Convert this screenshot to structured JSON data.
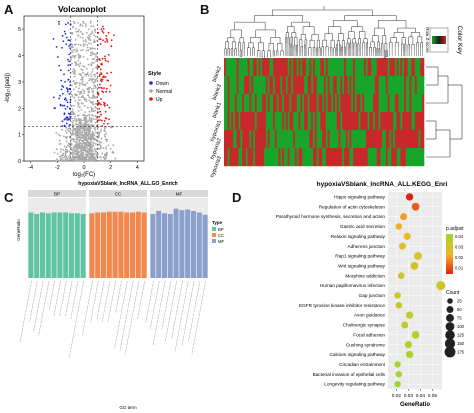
{
  "panel_letters": {
    "a": "A",
    "b": "B",
    "c": "C",
    "d": "D"
  },
  "colors": {
    "down": "#1f2fd6",
    "normal": "#a8a8a8",
    "up": "#e01919",
    "heat_red": "#c9282a",
    "heat_green": "#17a52a",
    "heat_dark": "#1a1a1a",
    "bp": "#5fc4a2",
    "cc": "#f5874d",
    "mf": "#8aa0cc",
    "dot_high": "#e4210f",
    "dot_low": "#9fd632"
  },
  "volcano": {
    "title": "Volcanoplot",
    "xlabel": "log₂(FC)",
    "ylabel": "-log₁₀(padj)",
    "legend_title": "Style",
    "legend_items": [
      "Down",
      "Normal",
      "Up"
    ],
    "xticks": [
      "-4",
      "-2",
      "0",
      "2",
      "4"
    ],
    "yticks": [
      "0",
      "1",
      "2",
      "3",
      "4",
      "5"
    ]
  },
  "heatmap": {
    "colorkey_title": "Color Key",
    "colorkey_sub": "Row Z-score",
    "colorkey_ticks": [
      "-2",
      "0",
      "2"
    ],
    "row_labels": [
      "blank2",
      "blank3",
      "blank1",
      "hypoxia1",
      "hypoxia2",
      "hypoxia3"
    ]
  },
  "go": {
    "title": "hypoxiaVSblank_lncRNA_ALL.GO_Enrich",
    "strip_labels": [
      "BP",
      "CC",
      "MF"
    ],
    "ylabel": "GeneRatio",
    "xlabel": "GO term",
    "legend_title": "Type",
    "legend_items": [
      "BP",
      "CC",
      "MF"
    ]
  },
  "kegg": {
    "title": "hypoxiaVSblank_lncRNA_ALL.KEGG_Enri",
    "xlabel": "GeneRatio",
    "xticks": [
      "0.02",
      "0.03",
      "0.04",
      "0.05"
    ],
    "padj_title": "p.adjust",
    "padj_ticks": [
      "0.04",
      "0.03",
      "0.02",
      "0.01"
    ],
    "count_title": "Count",
    "count_ticks": [
      "25",
      "50",
      "75",
      "100",
      "125",
      "150",
      "175"
    ]
  },
  "chart_data": [
    {
      "type": "scatter",
      "title": "Volcanoplot",
      "xlabel": "log₂(FC)",
      "ylabel": "-log₁₀(padj)",
      "xlim": [
        -4.5,
        4.5
      ],
      "ylim": [
        0,
        5.5
      ],
      "series": [
        {
          "name": "Down"
        },
        {
          "name": "Normal"
        },
        {
          "name": "Up"
        }
      ],
      "thresholds": {
        "log2fc": [
          -1,
          1
        ],
        "neg_log10_padj": 1.3
      }
    },
    {
      "type": "heatmap",
      "rows": [
        "blank2",
        "blank3",
        "blank1",
        "hypoxia1",
        "hypoxia2",
        "hypoxia3"
      ],
      "colorkey_range": [
        -2,
        2
      ]
    },
    {
      "type": "bar",
      "title": "hypoxiaVSblank_lncRNA_ALL.GO_Enrich",
      "ylabel": "GeneRatio",
      "xlabel": "GO term",
      "ylim": [
        0,
        1.05
      ],
      "groups": [
        {
          "name": "BP",
          "values": [
            0.86,
            0.84,
            0.86,
            0.85,
            0.86,
            0.86,
            0.86,
            0.85,
            0.85,
            0.84
          ]
        },
        {
          "name": "CC",
          "values": [
            0.85,
            0.86,
            0.86,
            0.87,
            0.87,
            0.87,
            0.86,
            0.86,
            0.87,
            0.86
          ]
        },
        {
          "name": "MF",
          "values": [
            0.84,
            0.88,
            0.85,
            0.84,
            0.91,
            0.89,
            0.9,
            0.88,
            0.86,
            0.83
          ]
        }
      ]
    },
    {
      "type": "scatter",
      "title": "hypoxiaVSblank_lncRNA_ALL.KEGG_Enri",
      "xlabel": "GeneRatio",
      "xlim": [
        0.013,
        0.058
      ],
      "categories": [
        "Hippo signaling pathway",
        "Regulation of actin cytoskeleton",
        "Parathyroid hormone synthesis, secretion and action",
        "Gastric acid secretion",
        "Relaxin signaling pathway",
        "Adherens junction",
        "Rap1 signaling pathway",
        "Wnt signaling pathway",
        "Morphine addiction",
        "Human papillomavirus infection",
        "Gap junction",
        "EGFR tyrosine kinase inhibitor resistance",
        "Axon guidance",
        "Cholinergic synapse",
        "Focal adhesion",
        "Cushing syndrome",
        "Calcium signaling pathway",
        "Circadian entrainment",
        "Bacterial invasion of epithelial cells",
        "Longevity regulating pathway"
      ],
      "gene_ratio": [
        0.031,
        0.036,
        0.026,
        0.022,
        0.029,
        0.025,
        0.038,
        0.035,
        0.024,
        0.057,
        0.021,
        0.022,
        0.031,
        0.027,
        0.036,
        0.03,
        0.031,
        0.021,
        0.022,
        0.021
      ],
      "count": [
        60,
        70,
        50,
        42,
        56,
        48,
        73,
        68,
        46,
        110,
        40,
        43,
        60,
        52,
        70,
        58,
        60,
        40,
        42,
        40
      ],
      "p_adjust": [
        0.005,
        0.012,
        0.02,
        0.022,
        0.024,
        0.026,
        0.028,
        0.029,
        0.03,
        0.031,
        0.032,
        0.033,
        0.034,
        0.035,
        0.036,
        0.037,
        0.038,
        0.039,
        0.04,
        0.041
      ]
    }
  ]
}
